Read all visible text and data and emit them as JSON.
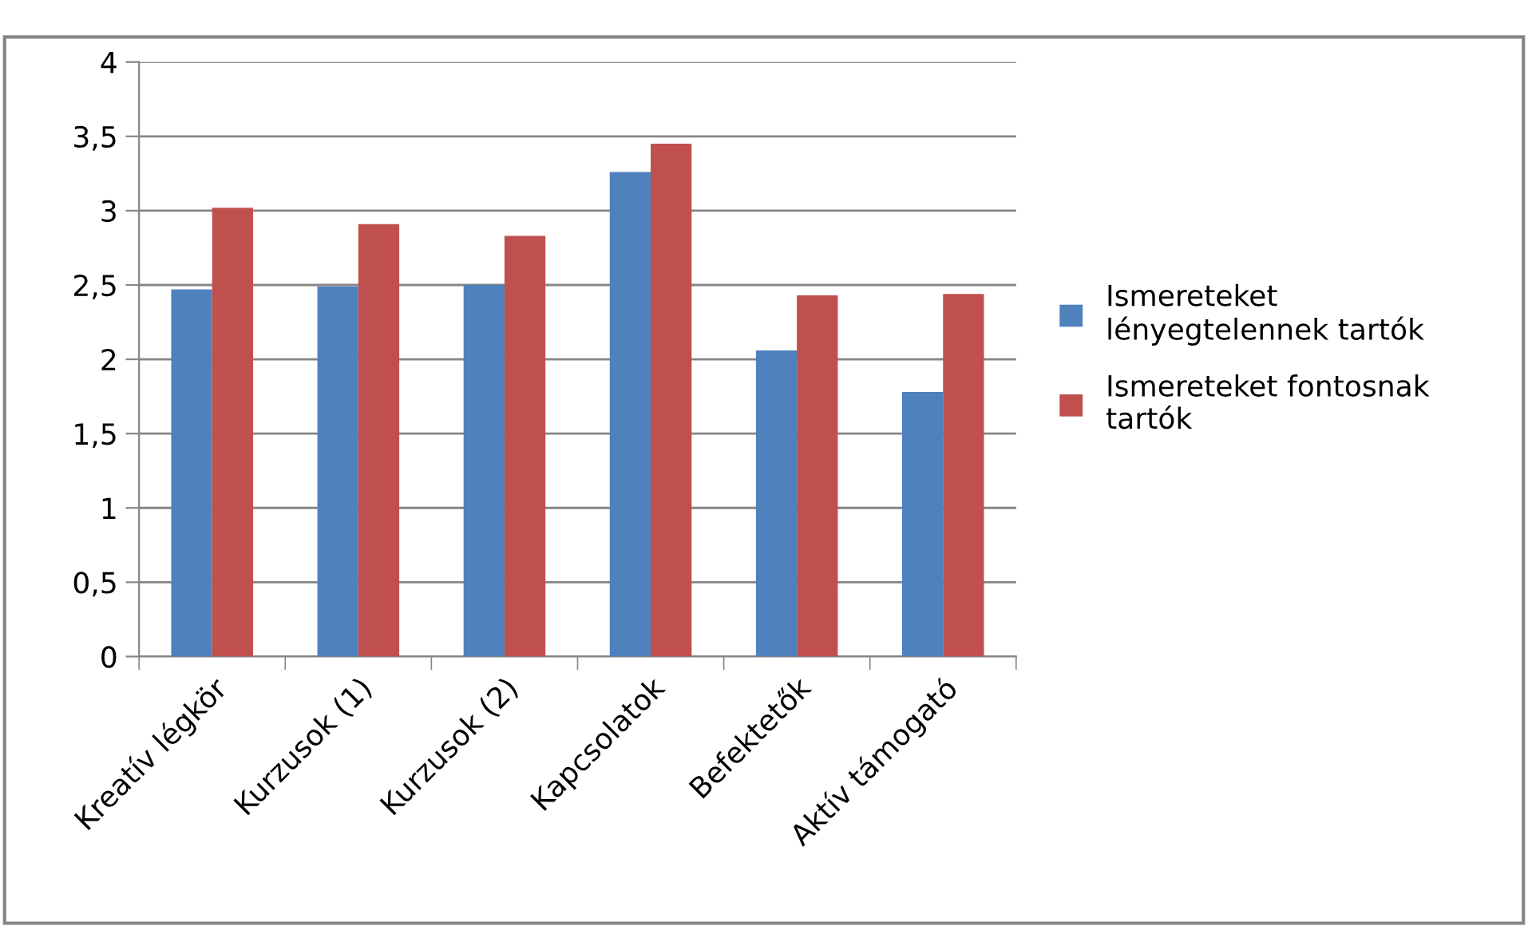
{
  "chart_data": {
    "type": "bar",
    "categories": [
      "Kreatív légkör",
      "Kurzusok (1)",
      "Kurzusok (2)",
      "Kapcsolatok",
      "Befektetők",
      "Aktív támogató"
    ],
    "series": [
      {
        "name": "Ismereteket lényegtelennek tartók",
        "color": "#4f81bd",
        "values": [
          2.47,
          2.49,
          2.5,
          3.26,
          2.06,
          1.78
        ]
      },
      {
        "name": "Ismereteket fontosnak tartók",
        "color": "#c0504d",
        "values": [
          3.02,
          2.91,
          2.83,
          3.45,
          2.43,
          2.44
        ]
      }
    ],
    "ylim": [
      0,
      4
    ],
    "yticks": [
      {
        "value": 0,
        "label": "0"
      },
      {
        "value": 0.5,
        "label": "0,5"
      },
      {
        "value": 1,
        "label": "1"
      },
      {
        "value": 1.5,
        "label": "1,5"
      },
      {
        "value": 2,
        "label": "2"
      },
      {
        "value": 2.5,
        "label": "2,5"
      },
      {
        "value": 3,
        "label": "3"
      },
      {
        "value": 3.5,
        "label": "3,5"
      },
      {
        "value": 4,
        "label": "4"
      }
    ],
    "grid": "y",
    "legend": "right"
  }
}
